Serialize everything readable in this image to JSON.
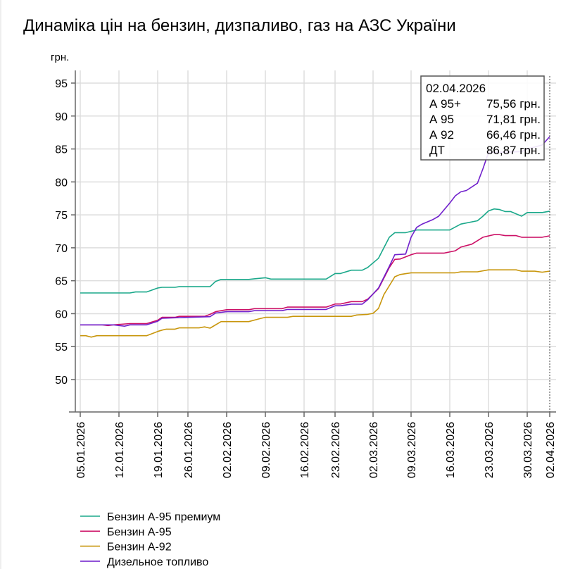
{
  "chart_data": {
    "type": "line",
    "title": "Динаміка цін на бензин, дизпаливо, газ на АЗС України",
    "ylabel": "грн.",
    "xlabel": "",
    "ylim": [
      45,
      97
    ],
    "yticks": [
      50,
      55,
      60,
      65,
      70,
      75,
      80,
      85,
      90,
      95
    ],
    "xticks": [
      "05.01.2026",
      "12.01.2026",
      "19.01.2026",
      "26.01.2026",
      "02.02.2026",
      "09.02.2026",
      "16.02.2026",
      "23.02.2026",
      "02.03.2026",
      "09.03.2026",
      "16.03.2026",
      "23.03.2026",
      "30.03.2026",
      "02.04.2026"
    ],
    "grid": true,
    "legend_position": "bottom-left",
    "series": [
      {
        "name": "Бензин А-95 премиум",
        "short": "А 95+",
        "color": "#1aa88a",
        "points": [
          [
            "05.01",
            63.15
          ],
          [
            "14.01",
            63.15
          ],
          [
            "15.01",
            63.3
          ],
          [
            "17.01",
            63.3
          ],
          [
            "19.01",
            63.9
          ],
          [
            "20.01",
            64.0
          ],
          [
            "23.01",
            64.0
          ],
          [
            "24.01",
            64.1
          ],
          [
            "30.01",
            64.1
          ],
          [
            "31.01",
            64.9
          ],
          [
            "01.02",
            65.2
          ],
          [
            "06.02",
            65.2
          ],
          [
            "07.02",
            65.3
          ],
          [
            "09.02",
            65.45
          ],
          [
            "10.02",
            65.25
          ],
          [
            "21.02",
            65.25
          ],
          [
            "23.02",
            66.1
          ],
          [
            "24.02",
            66.1
          ],
          [
            "26.02",
            66.6
          ],
          [
            "28.02",
            66.6
          ],
          [
            "01.03",
            67.0
          ],
          [
            "03.03",
            68.4
          ],
          [
            "05.03",
            71.6
          ],
          [
            "06.03",
            72.3
          ],
          [
            "08.03",
            72.3
          ],
          [
            "09.03",
            72.5
          ],
          [
            "10.03",
            72.7
          ],
          [
            "16.03",
            72.7
          ],
          [
            "18.03",
            73.6
          ],
          [
            "21.03",
            74.1
          ],
          [
            "22.03",
            74.8
          ],
          [
            "23.03",
            75.6
          ],
          [
            "24.03",
            75.9
          ],
          [
            "25.03",
            75.8
          ],
          [
            "26.03",
            75.5
          ],
          [
            "27.03",
            75.5
          ],
          [
            "29.03",
            74.8
          ],
          [
            "30.03",
            75.35
          ],
          [
            "01.04",
            75.35
          ],
          [
            "02.04",
            75.56
          ]
        ]
      },
      {
        "name": "Бензин А-95",
        "short": "А 95",
        "color": "#cc1066",
        "points": [
          [
            "05.01",
            58.3
          ],
          [
            "09.01",
            58.3
          ],
          [
            "10.01",
            58.2
          ],
          [
            "11.01",
            58.3
          ],
          [
            "14.01",
            58.5
          ],
          [
            "17.01",
            58.5
          ],
          [
            "19.01",
            59.0
          ],
          [
            "20.01",
            59.45
          ],
          [
            "23.01",
            59.45
          ],
          [
            "24.01",
            59.6
          ],
          [
            "29.01",
            59.6
          ],
          [
            "30.01",
            59.9
          ],
          [
            "31.01",
            60.3
          ],
          [
            "02.02",
            60.6
          ],
          [
            "06.02",
            60.6
          ],
          [
            "07.02",
            60.76
          ],
          [
            "12.02",
            60.76
          ],
          [
            "13.02",
            61.0
          ],
          [
            "21.02",
            61.0
          ],
          [
            "23.02",
            61.47
          ],
          [
            "24.02",
            61.47
          ],
          [
            "26.02",
            61.83
          ],
          [
            "28.02",
            61.83
          ],
          [
            "01.03",
            62.2
          ],
          [
            "03.03",
            63.8
          ],
          [
            "05.03",
            67.0
          ],
          [
            "06.03",
            68.25
          ],
          [
            "07.03",
            68.3
          ],
          [
            "09.03",
            68.95
          ],
          [
            "10.03",
            69.2
          ],
          [
            "15.03",
            69.2
          ],
          [
            "17.03",
            69.55
          ],
          [
            "18.03",
            70.1
          ],
          [
            "20.03",
            70.55
          ],
          [
            "22.03",
            71.6
          ],
          [
            "24.03",
            72.0
          ],
          [
            "25.03",
            72.0
          ],
          [
            "26.03",
            71.85
          ],
          [
            "28.03",
            71.85
          ],
          [
            "29.03",
            71.6
          ],
          [
            "01.04",
            71.6
          ],
          [
            "02.04",
            71.81
          ]
        ]
      },
      {
        "name": "Бензин А-92",
        "short": "А 92",
        "color": "#c8960c",
        "points": [
          [
            "05.01",
            56.66
          ],
          [
            "06.01",
            56.66
          ],
          [
            "07.01",
            56.45
          ],
          [
            "08.01",
            56.66
          ],
          [
            "17.01",
            56.66
          ],
          [
            "19.01",
            57.3
          ],
          [
            "20.01",
            57.5
          ],
          [
            "21.01",
            57.65
          ],
          [
            "23.01",
            57.65
          ],
          [
            "24.01",
            57.85
          ],
          [
            "28.01",
            57.85
          ],
          [
            "29.01",
            58.0
          ],
          [
            "30.01",
            57.8
          ],
          [
            "01.02",
            58.8
          ],
          [
            "06.02",
            58.8
          ],
          [
            "08.02",
            59.25
          ],
          [
            "09.02",
            59.45
          ],
          [
            "13.02",
            59.45
          ],
          [
            "14.02",
            59.6
          ],
          [
            "26.02",
            59.6
          ],
          [
            "27.02",
            59.8
          ],
          [
            "01.03",
            59.9
          ],
          [
            "02.03",
            60.05
          ],
          [
            "03.03",
            60.8
          ],
          [
            "04.03",
            62.9
          ],
          [
            "06.03",
            65.6
          ],
          [
            "07.03",
            65.95
          ],
          [
            "09.03",
            66.2
          ],
          [
            "17.03",
            66.2
          ],
          [
            "18.03",
            66.35
          ],
          [
            "21.03",
            66.35
          ],
          [
            "23.03",
            66.65
          ],
          [
            "28.03",
            66.65
          ],
          [
            "29.03",
            66.45
          ],
          [
            "31.03",
            66.45
          ],
          [
            "01.04",
            66.3
          ],
          [
            "02.04",
            66.46
          ]
        ]
      },
      {
        "name": "Дизельное топливо",
        "short": "ДТ",
        "color": "#7020cc",
        "points": [
          [
            "05.01",
            58.3
          ],
          [
            "11.01",
            58.3
          ],
          [
            "13.01",
            58.1
          ],
          [
            "14.01",
            58.3
          ],
          [
            "17.01",
            58.3
          ],
          [
            "19.01",
            58.85
          ],
          [
            "20.01",
            59.3
          ],
          [
            "24.01",
            59.4
          ],
          [
            "30.01",
            59.55
          ],
          [
            "31.01",
            60.1
          ],
          [
            "02.02",
            60.3
          ],
          [
            "06.02",
            60.3
          ],
          [
            "07.02",
            60.45
          ],
          [
            "12.02",
            60.45
          ],
          [
            "13.02",
            60.65
          ],
          [
            "21.02",
            60.65
          ],
          [
            "23.02",
            61.2
          ],
          [
            "24.02",
            61.2
          ],
          [
            "26.02",
            61.45
          ],
          [
            "28.02",
            61.45
          ],
          [
            "01.03",
            62.1
          ],
          [
            "03.03",
            63.9
          ],
          [
            "05.03",
            67.2
          ],
          [
            "06.03",
            68.95
          ],
          [
            "08.03",
            69.05
          ],
          [
            "09.03",
            71.6
          ],
          [
            "10.03",
            73.1
          ],
          [
            "11.03",
            73.6
          ],
          [
            "13.03",
            74.3
          ],
          [
            "14.03",
            74.8
          ],
          [
            "16.03",
            76.8
          ],
          [
            "17.03",
            77.9
          ],
          [
            "18.03",
            78.5
          ],
          [
            "19.03",
            78.7
          ],
          [
            "21.03",
            79.8
          ],
          [
            "22.03",
            82.0
          ],
          [
            "23.03",
            84.45
          ],
          [
            "29.03",
            84.6
          ],
          [
            "30.03",
            85.0
          ],
          [
            "01.04",
            85.6
          ],
          [
            "02.04",
            86.87
          ]
        ]
      }
    ],
    "tooltip": {
      "date": "02.04.2026",
      "rows": [
        {
          "label": "А 95+",
          "value": "75,56 грн."
        },
        {
          "label": "А 95",
          "value": "71,81 грн."
        },
        {
          "label": "А 92",
          "value": "66,46 грн."
        },
        {
          "label": "ДТ",
          "value": "86,87 грн."
        }
      ]
    }
  }
}
